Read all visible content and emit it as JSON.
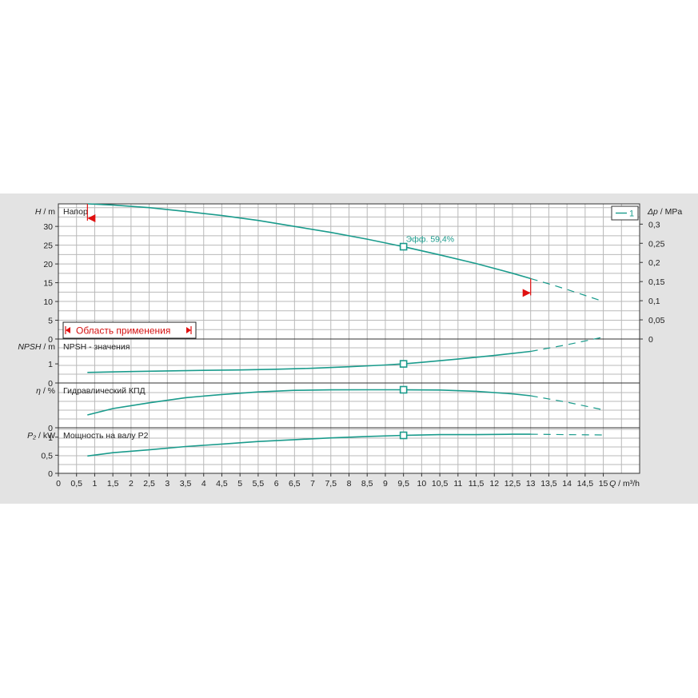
{
  "chart_data": [
    {
      "type": "line",
      "title": "Напор",
      "ylabel_var": "H",
      "ylabel_unit": "m",
      "yticks": [
        "0",
        "5",
        "10",
        "15",
        "20",
        "25",
        "30"
      ],
      "ylim": [
        0,
        36
      ],
      "right_ylabel_var": "Δp",
      "right_ylabel_unit": "MPa",
      "right_yticks": [
        "0",
        "0,05",
        "0,1",
        "0,15",
        "0,2",
        "0,25",
        "0,3"
      ],
      "series": [
        {
          "name": "1",
          "x": [
            0.8,
            1.5,
            2.5,
            3.5,
            4.5,
            5.5,
            6.5,
            7.5,
            8.5,
            9.5,
            10.5,
            11.5,
            12.5,
            13
          ],
          "y": [
            36,
            35.7,
            35,
            34,
            32.9,
            31.6,
            30,
            28.4,
            26.6,
            24.6,
            22.4,
            20.1,
            17.5,
            16.1
          ]
        }
      ],
      "extension": {
        "x": [
          13,
          13.5,
          14,
          14.5,
          15
        ],
        "y": [
          16.1,
          14.7,
          13.2,
          11.6,
          10
        ]
      },
      "duty_point": {
        "x": 9.5,
        "y": 24.6,
        "label": "Эфф.  59,4%"
      },
      "application_range": {
        "label": "Область применения",
        "x_min": 0.8,
        "x_max": 13
      },
      "legend": [
        "1"
      ]
    },
    {
      "type": "line",
      "title": "NPSH - значения",
      "ylabel_var": "NPSH",
      "ylabel_unit": "m",
      "yticks": [
        "0",
        "1"
      ],
      "ylim": [
        0,
        2.3
      ],
      "series": [
        {
          "name": "NPSH",
          "x": [
            0.8,
            2,
            3,
            4,
            5,
            6,
            7,
            8,
            9,
            9.5,
            10,
            11,
            12,
            13
          ],
          "y": [
            0.55,
            0.6,
            0.63,
            0.66,
            0.68,
            0.72,
            0.77,
            0.85,
            0.94,
            1.0,
            1.08,
            1.25,
            1.44,
            1.65
          ]
        }
      ],
      "extension": {
        "x": [
          13,
          14,
          15
        ],
        "y": [
          1.65,
          2.0,
          2.4
        ]
      },
      "duty_point": {
        "x": 9.5,
        "y": 1.0
      }
    },
    {
      "type": "line",
      "title": "Гидравлический КПД",
      "ylabel_var": "η",
      "ylabel_unit": "%",
      "yticks": [
        "0"
      ],
      "ylim": [
        0,
        70
      ],
      "series": [
        {
          "name": "КПД",
          "x": [
            0.8,
            1.5,
            2.5,
            3.5,
            4.5,
            5.5,
            6.5,
            7.5,
            8.5,
            9.5,
            10.5,
            11.5,
            12.5,
            13
          ],
          "y": [
            20,
            30,
            39,
            47,
            52,
            56,
            58.5,
            59.2,
            59.4,
            59.4,
            59,
            57,
            53,
            50
          ]
        }
      ],
      "extension": {
        "x": [
          13,
          14,
          15
        ],
        "y": [
          50,
          40,
          28
        ]
      },
      "duty_point": {
        "x": 9.5,
        "y": 59.4
      }
    },
    {
      "type": "line",
      "title": "Мощность на валу P2",
      "ylabel_var": "P₂",
      "ylabel_unit": "kW",
      "yticks": [
        "0",
        "0,5",
        "1"
      ],
      "ylim": [
        0,
        1.26
      ],
      "series": [
        {
          "name": "P2",
          "x": [
            0.8,
            1.5,
            2.5,
            3.5,
            4.5,
            5.5,
            6.5,
            7.5,
            8.5,
            9.5,
            10.5,
            11.5,
            12.5,
            13
          ],
          "y": [
            0.48,
            0.57,
            0.65,
            0.74,
            0.81,
            0.88,
            0.93,
            0.98,
            1.02,
            1.05,
            1.07,
            1.07,
            1.08,
            1.08
          ]
        }
      ],
      "extension": {
        "x": [
          13,
          14,
          15
        ],
        "y": [
          1.08,
          1.07,
          1.06
        ]
      },
      "duty_point": {
        "x": 9.5,
        "y": 1.05
      }
    }
  ],
  "x_axis": {
    "label_var": "Q",
    "label_unit": "m³/h",
    "xlim": [
      0,
      16
    ],
    "ticks": [
      "0",
      "0,5",
      "1",
      "1,5",
      "2",
      "2,5",
      "3",
      "3,5",
      "4",
      "4,5",
      "5",
      "5,5",
      "6",
      "6,5",
      "7",
      "7,5",
      "8",
      "8,5",
      "9",
      "9,5",
      "10",
      "10,5",
      "11",
      "11,5",
      "12",
      "12,5",
      "13",
      "13,5",
      "14",
      "14,5",
      "15"
    ]
  },
  "colors": {
    "curve": "#1a9b8c",
    "range": "#e01010",
    "background": "#e3e3e3"
  }
}
